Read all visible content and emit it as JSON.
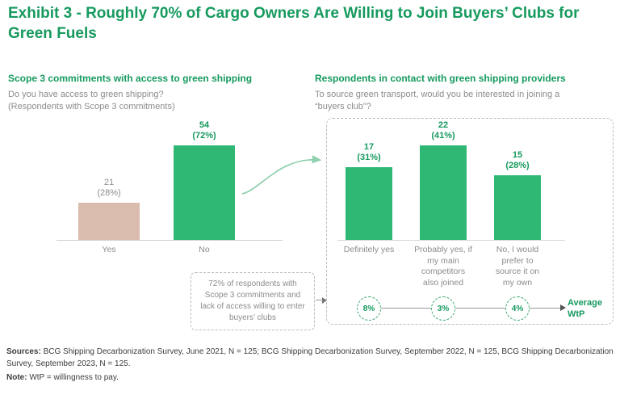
{
  "colors": {
    "accent_green": "#169a5e",
    "bar_green": "#2eb873",
    "bar_tan": "#d9bcae",
    "gray_text": "#8c8c8c",
    "dashed_border": "#bcbcbc"
  },
  "title": "Exhibit 3 - Roughly 70% of Cargo Owners Are Willing to Join Buyers’ Clubs for Green Fuels",
  "left_panel": {
    "header": "Scope 3 commitments with access to green shipping",
    "question_line1": "Do you have access to green shipping?",
    "question_line2": "(Respondents with Scope 3 commitments)"
  },
  "right_panel": {
    "header": "Respondents in contact with green shipping providers",
    "question_line1": "To source green transport, would you be interested in joining a",
    "question_line2": "“buyers club”?"
  },
  "chart_data": [
    {
      "type": "bar",
      "title": "Do you have access to green shipping? (Respondents with Scope 3 commitments)",
      "categories": [
        "Yes",
        "No"
      ],
      "values": [
        21,
        54
      ],
      "counts": [
        "21",
        "54"
      ],
      "percent_labels": [
        "(28%)",
        "(72%)"
      ],
      "ylim": [
        0,
        54
      ],
      "bar_colors": [
        "#d9bcae",
        "#2eb873"
      ],
      "grid": false,
      "legend": "none"
    },
    {
      "type": "bar",
      "title": "To source green transport, would you be interested in joining a “buyers club”?",
      "categories": [
        "Definitely yes",
        "Probably yes, if my main competitors also joined",
        "No, I would prefer to source it on my own"
      ],
      "values": [
        17,
        22,
        15
      ],
      "counts": [
        "17",
        "22",
        "15"
      ],
      "percent_labels": [
        "(31%)",
        "(41%)",
        "(28%)"
      ],
      "ylim": [
        0,
        22
      ],
      "bar_colors": [
        "#2eb873",
        "#2eb873",
        "#2eb873"
      ],
      "grid": false,
      "legend": "none",
      "average_wtp": {
        "values": [
          "8%",
          "3%",
          "4%"
        ],
        "label_line1": "Average",
        "label_line2": "WtP"
      }
    }
  ],
  "callout": {
    "text": "72% of respondents with Scope 3 commitments and lack of access willing to enter buyers’ clubs"
  },
  "footer": {
    "sources_label": "Sources:",
    "sources_text": " BCG Shipping Decarbonization Survey, June 2021, N = 125; BCG Shipping Decarbonization Survey, September 2022, N = 125, BCG Shipping Decarbonization Survey, September 2023, N = 125.",
    "note_label": "Note:",
    "note_text": " WtP = willingness to pay."
  }
}
